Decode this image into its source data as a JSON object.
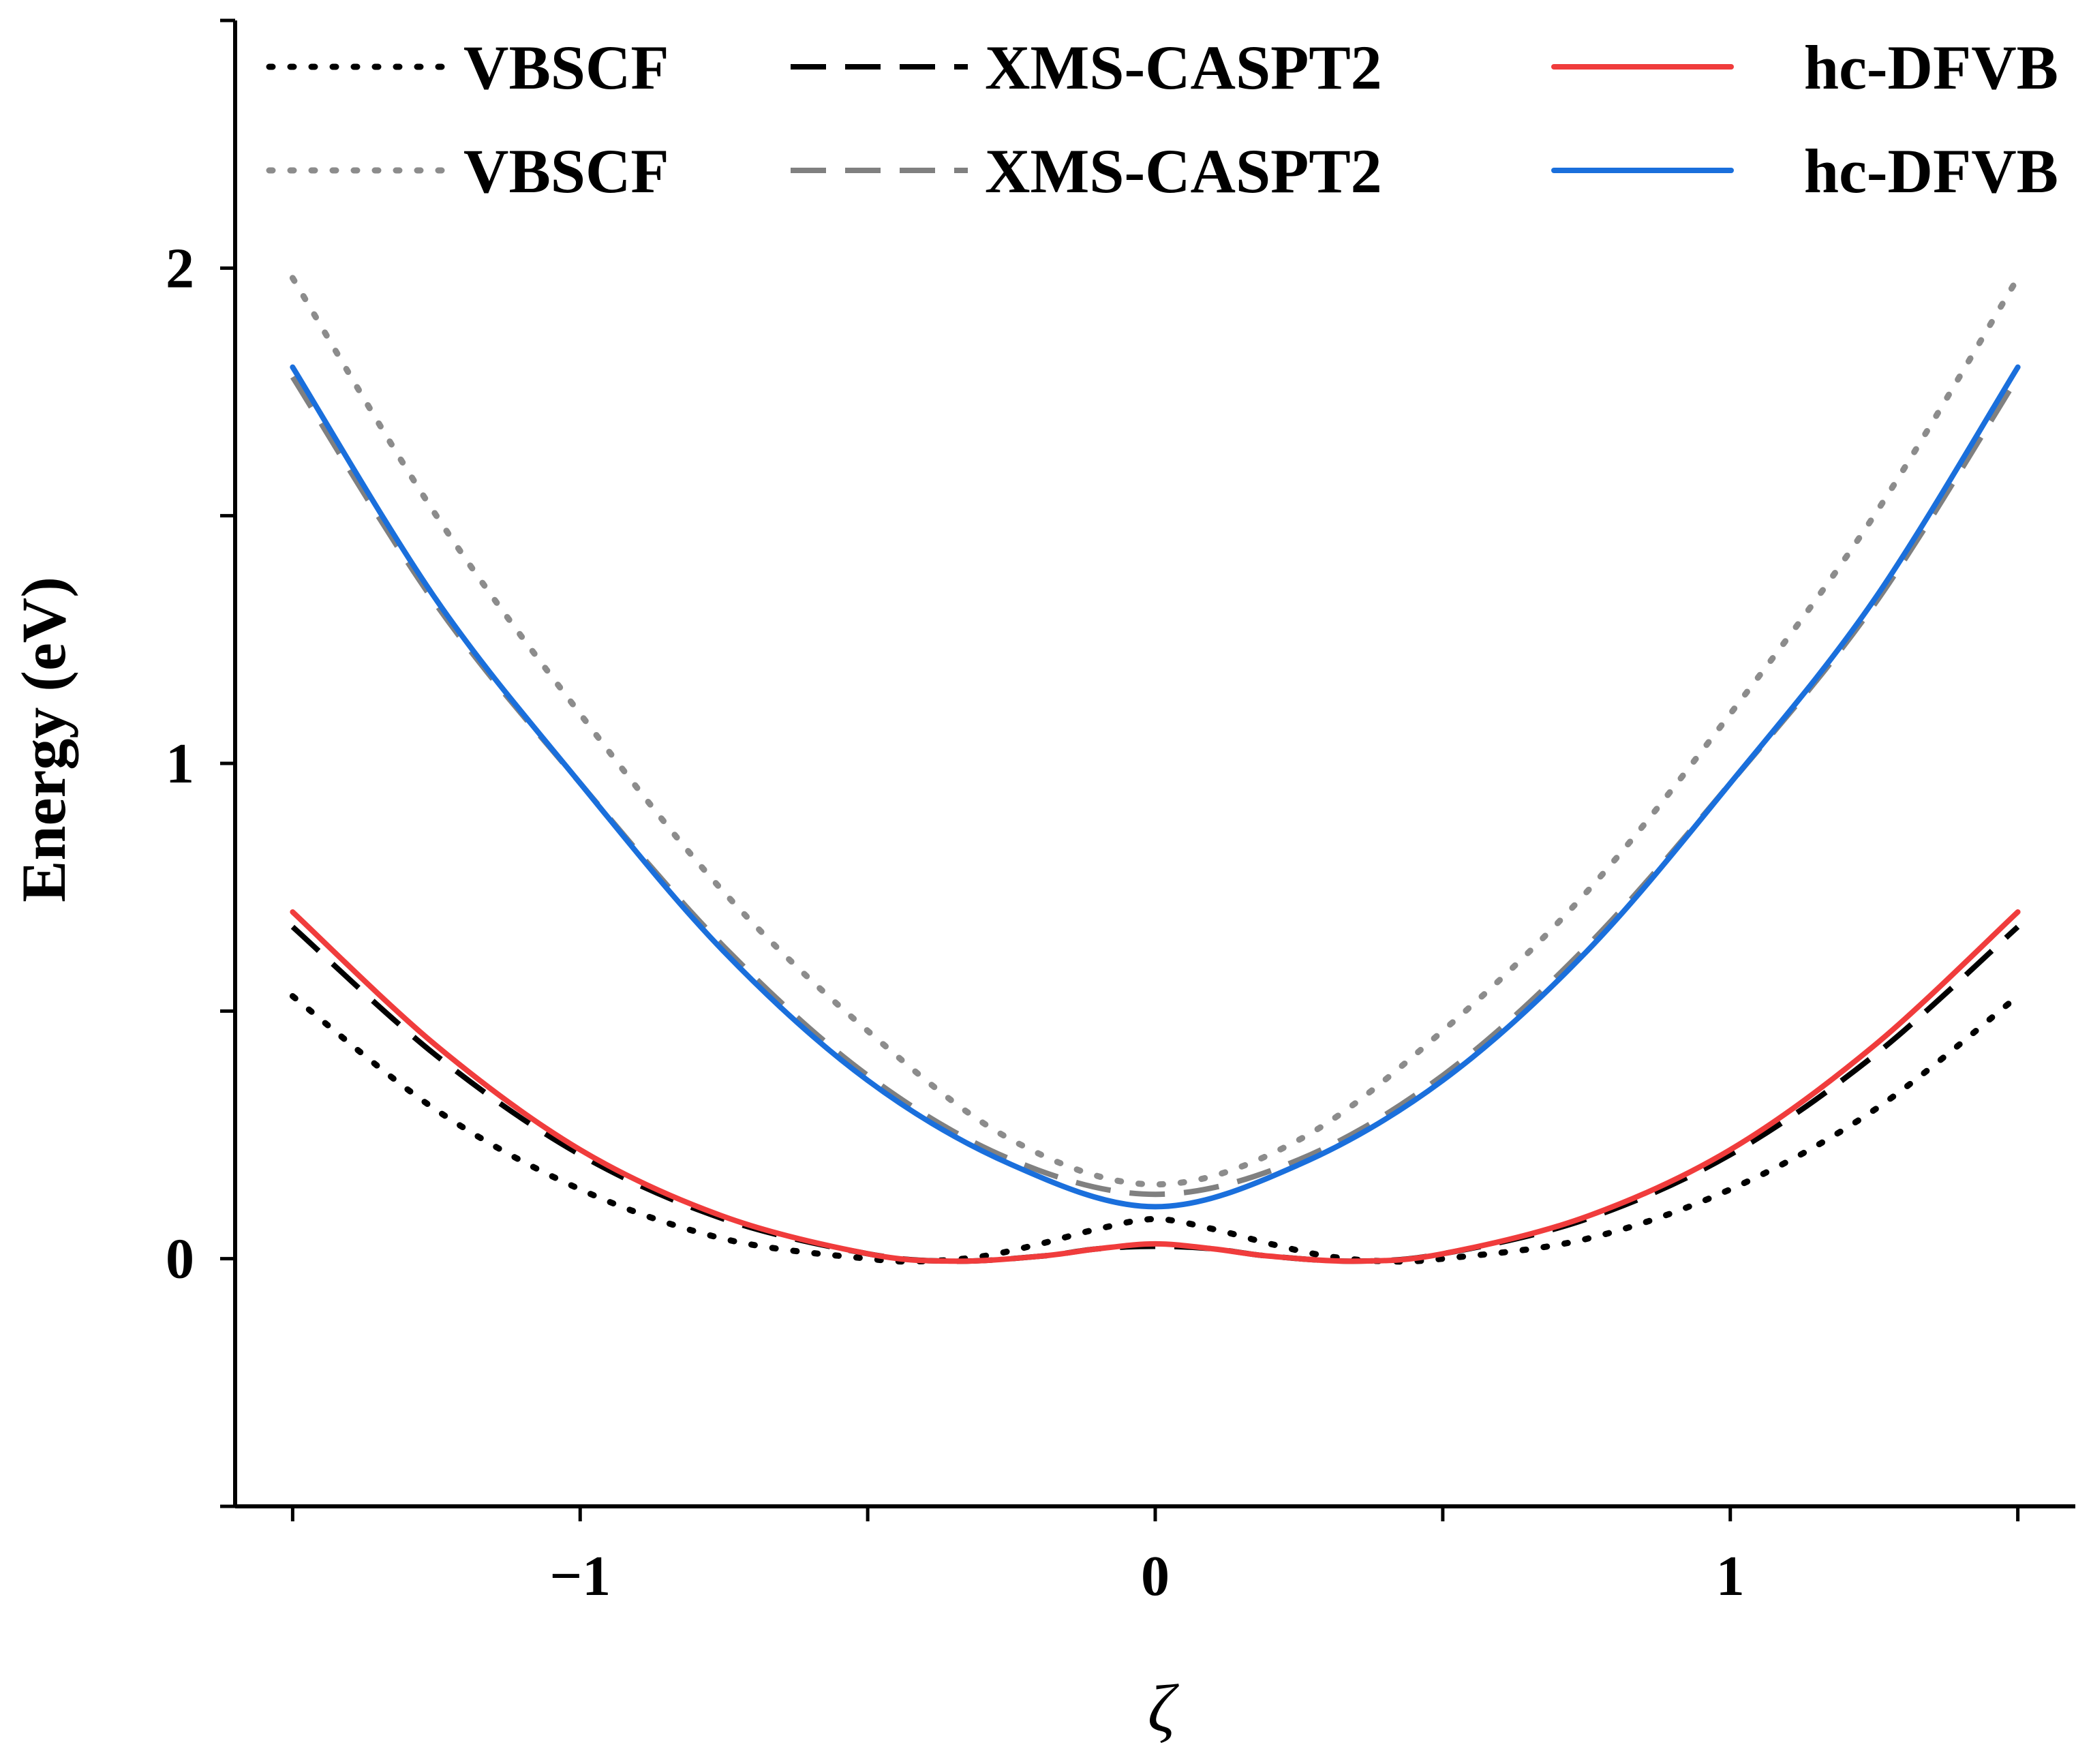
{
  "chart_data": {
    "type": "line",
    "xlabel": "ζ",
    "ylabel": "Energy (eV)",
    "xlim": [
      -1.6,
      1.6
    ],
    "ylim": [
      -0.5,
      2.5
    ],
    "xticks": [
      {
        "value": -1.5,
        "label": ""
      },
      {
        "value": -1,
        "label": "−1"
      },
      {
        "value": -0.5,
        "label": ""
      },
      {
        "value": 0,
        "label": "0"
      },
      {
        "value": 0.5,
        "label": ""
      },
      {
        "value": 1,
        "label": "1"
      },
      {
        "value": 1.5,
        "label": ""
      }
    ],
    "yticks": [
      {
        "value": -0.5,
        "label": ""
      },
      {
        "value": 0,
        "label": "0"
      },
      {
        "value": 0.5,
        "label": ""
      },
      {
        "value": 1,
        "label": "1"
      },
      {
        "value": 1.5,
        "label": ""
      },
      {
        "value": 2,
        "label": "2"
      },
      {
        "value": 2.5,
        "label": ""
      }
    ],
    "legend_position": "top",
    "series": [
      {
        "name": "VBSCF",
        "state": "ground",
        "color": "#000000",
        "style": "dotted",
        "x": [
          -1.5,
          -1.25,
          -1.0,
          -0.75,
          -0.5,
          -0.4,
          -0.3,
          -0.2,
          -0.1,
          0.0,
          0.1,
          0.2,
          0.3,
          0.4,
          0.5,
          0.75,
          1.0,
          1.25,
          1.5
        ],
        "y": [
          0.53,
          0.3,
          0.14,
          0.04,
          0.0,
          -0.005,
          0.005,
          0.03,
          0.06,
          0.08,
          0.06,
          0.03,
          0.005,
          -0.005,
          0.0,
          0.04,
          0.14,
          0.3,
          0.53
        ]
      },
      {
        "name": "XMS-CASPT2",
        "state": "ground",
        "color": "#000000",
        "style": "dashed",
        "x": [
          -1.5,
          -1.25,
          -1.0,
          -0.75,
          -0.5,
          -0.35,
          -0.2,
          -0.1,
          0.0,
          0.1,
          0.2,
          0.35,
          0.5,
          0.75,
          1.0,
          1.25,
          1.5
        ],
        "y": [
          0.67,
          0.41,
          0.21,
          0.08,
          0.01,
          -0.005,
          0.005,
          0.02,
          0.025,
          0.02,
          0.005,
          -0.005,
          0.01,
          0.08,
          0.21,
          0.41,
          0.67
        ]
      },
      {
        "name": "hc-DFVB",
        "state": "ground",
        "color": "#f03c3c",
        "style": "solid",
        "x": [
          -1.5,
          -1.25,
          -1.0,
          -0.75,
          -0.5,
          -0.35,
          -0.2,
          -0.1,
          0.0,
          0.1,
          0.2,
          0.35,
          0.5,
          0.75,
          1.0,
          1.25,
          1.5
        ],
        "y": [
          0.7,
          0.43,
          0.22,
          0.085,
          0.01,
          -0.005,
          0.005,
          0.02,
          0.03,
          0.02,
          0.005,
          -0.005,
          0.01,
          0.085,
          0.22,
          0.43,
          0.7
        ]
      },
      {
        "name": "VBSCF",
        "state": "excited",
        "color": "#8c8c8c",
        "style": "dotted",
        "x": [
          -1.5,
          -1.25,
          -1.0,
          -0.75,
          -0.5,
          -0.25,
          0.0,
          0.25,
          0.5,
          0.75,
          1.0,
          1.25,
          1.5
        ],
        "y": [
          1.98,
          1.5,
          1.1,
          0.74,
          0.46,
          0.24,
          0.15,
          0.24,
          0.46,
          0.74,
          1.1,
          1.5,
          1.98
        ]
      },
      {
        "name": "XMS-CASPT2",
        "state": "excited",
        "color": "#808080",
        "style": "dashed",
        "x": [
          -1.5,
          -1.25,
          -1.0,
          -0.75,
          -0.5,
          -0.25,
          0.0,
          0.25,
          0.5,
          0.75,
          1.0,
          1.25,
          1.5
        ],
        "y": [
          1.78,
          1.32,
          0.96,
          0.63,
          0.37,
          0.2,
          0.13,
          0.2,
          0.37,
          0.63,
          0.96,
          1.32,
          1.78
        ]
      },
      {
        "name": "hc-DFVB",
        "state": "excited",
        "color": "#1a6fdc",
        "style": "solid",
        "x": [
          -1.5,
          -1.25,
          -1.0,
          -0.75,
          -0.5,
          -0.25,
          0.0,
          0.25,
          0.5,
          0.75,
          1.0,
          1.25,
          1.5
        ],
        "y": [
          1.8,
          1.33,
          0.96,
          0.62,
          0.36,
          0.19,
          0.105,
          0.19,
          0.36,
          0.62,
          0.96,
          1.33,
          1.8
        ]
      }
    ]
  }
}
